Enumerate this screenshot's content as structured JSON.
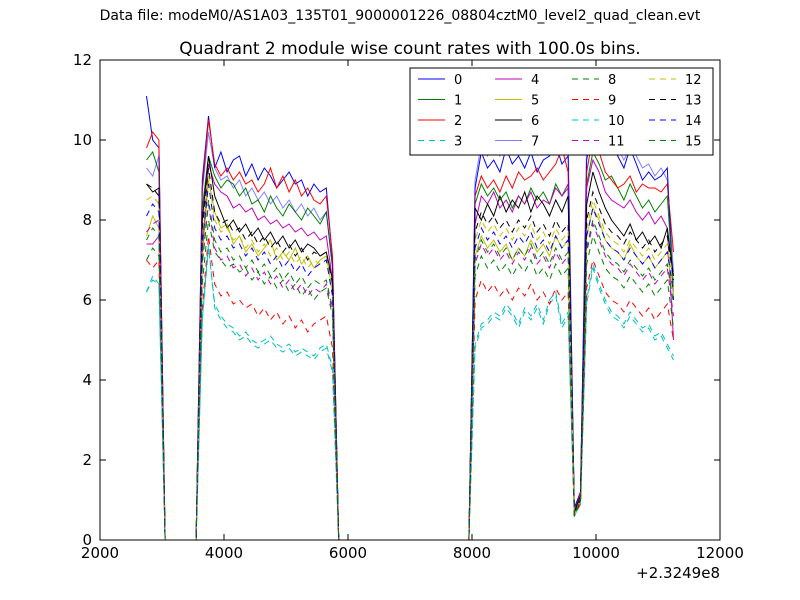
{
  "figure": {
    "suptitle": "Data file: modeM0/AS1A03_135T01_9000001226_08804cztM0_level2_quad_clean.evt"
  },
  "chart_data": {
    "type": "line",
    "title": "Quadrant 2 module wise count rates with 100.0s bins.",
    "xlabel": "",
    "ylabel": "",
    "x_offset_label": "+2.3249e8",
    "xlim": [
      2000,
      12000
    ],
    "ylim": [
      0,
      12
    ],
    "xticks": [
      2000,
      4000,
      6000,
      8000,
      10000,
      12000
    ],
    "yticks": [
      0,
      2,
      4,
      6,
      8,
      10,
      12
    ],
    "grid": false,
    "legend": {
      "placement": "top-right",
      "columns": 4
    },
    "x": [
      2750,
      2850,
      2950,
      3050,
      3550,
      3650,
      3750,
      3850,
      3950,
      4050,
      4150,
      4250,
      4350,
      4450,
      4550,
      4650,
      4750,
      4850,
      4950,
      5050,
      5150,
      5250,
      5350,
      5450,
      5550,
      5650,
      5750,
      5850,
      7950,
      8050,
      8150,
      8250,
      8350,
      8450,
      8550,
      8650,
      8750,
      8850,
      8950,
      9050,
      9150,
      9250,
      9350,
      9450,
      9550,
      9650,
      9750,
      9850,
      9950,
      10050,
      10150,
      10250,
      10350,
      10450,
      10550,
      10650,
      10750,
      10850,
      10950,
      11050,
      11150,
      11250
    ],
    "series": [
      {
        "name": "0",
        "color": "#0000ff",
        "dash": false,
        "values": [
          11.1,
          10.0,
          9.8,
          0,
          0,
          9.0,
          10.6,
          9.3,
          9.7,
          9.2,
          9.5,
          9.6,
          9.1,
          9.4,
          9.0,
          9.3,
          9.1,
          8.8,
          9.0,
          9.2,
          8.9,
          9.0,
          8.6,
          8.9,
          8.7,
          8.8,
          7.0,
          0,
          0,
          8.8,
          9.7,
          9.3,
          9.5,
          9.2,
          9.8,
          9.4,
          9.6,
          9.3,
          9.7,
          9.2,
          9.5,
          9.6,
          9.9,
          9.4,
          9.6,
          0.8,
          1.2,
          9.5,
          10.5,
          10.3,
          9.8,
          10.0,
          9.6,
          9.3,
          9.8,
          9.4,
          9.0,
          9.2,
          9.0,
          9.1,
          9.3,
          6.0
        ]
      },
      {
        "name": "1",
        "color": "#008000",
        "dash": false,
        "values": [
          9.5,
          9.7,
          9.2,
          0,
          0,
          8.3,
          9.6,
          9.1,
          8.8,
          9.0,
          8.9,
          8.6,
          8.8,
          8.4,
          8.5,
          8.2,
          8.6,
          8.3,
          8.1,
          8.4,
          8.2,
          8.0,
          8.3,
          8.1,
          7.9,
          8.2,
          6.8,
          0,
          0,
          8.4,
          8.9,
          8.6,
          8.8,
          8.5,
          8.7,
          8.3,
          8.6,
          8.4,
          8.8,
          8.5,
          8.7,
          8.4,
          8.9,
          8.6,
          8.8,
          0.7,
          1.1,
          8.9,
          9.7,
          9.4,
          9.0,
          9.1,
          8.8,
          8.5,
          8.9,
          8.6,
          8.3,
          8.5,
          8.2,
          8.4,
          8.6,
          6.3
        ]
      },
      {
        "name": "2",
        "color": "#ff0000",
        "dash": false,
        "values": [
          9.8,
          10.2,
          10.0,
          0,
          0,
          8.8,
          10.5,
          9.4,
          9.1,
          9.3,
          9.0,
          9.2,
          8.9,
          9.0,
          8.7,
          8.9,
          9.3,
          8.8,
          9.1,
          8.7,
          9.0,
          8.6,
          8.8,
          8.5,
          8.4,
          8.6,
          7.1,
          0,
          0,
          8.6,
          9.1,
          8.8,
          9.0,
          8.7,
          9.1,
          8.8,
          9.2,
          9.0,
          9.1,
          9.3,
          9.0,
          9.2,
          9.4,
          9.8,
          9.2,
          0.7,
          1.2,
          9.2,
          10.1,
          9.7,
          9.2,
          9.0,
          8.8,
          8.9,
          9.1,
          8.7,
          8.9,
          8.8,
          8.8,
          8.7,
          8.9,
          7.2
        ]
      },
      {
        "name": "3",
        "color": "#00bfbf",
        "dash": true,
        "values": [
          6.2,
          6.6,
          6.4,
          0,
          0,
          5.5,
          7.4,
          5.8,
          5.5,
          5.3,
          5.2,
          5.0,
          5.1,
          4.9,
          4.8,
          4.9,
          5.0,
          4.8,
          4.7,
          4.8,
          4.6,
          4.7,
          4.6,
          4.5,
          4.7,
          4.8,
          4.2,
          0,
          0,
          4.8,
          5.3,
          5.4,
          5.6,
          5.5,
          5.8,
          5.6,
          5.3,
          5.7,
          5.5,
          5.8,
          5.4,
          5.9,
          6.1,
          5.3,
          5.6,
          0.6,
          0.9,
          5.9,
          6.8,
          6.3,
          5.9,
          5.6,
          5.5,
          5.3,
          5.6,
          5.4,
          5.2,
          5.3,
          5.0,
          5.1,
          4.8,
          4.5
        ]
      },
      {
        "name": "4",
        "color": "#bf00bf",
        "dash": false,
        "values": [
          7.4,
          7.4,
          7.6,
          0,
          0,
          7.2,
          9.4,
          8.9,
          8.7,
          8.6,
          8.3,
          8.4,
          8.2,
          8.3,
          8.0,
          8.1,
          7.9,
          8.0,
          7.8,
          7.9,
          7.7,
          7.8,
          7.6,
          7.7,
          7.5,
          7.6,
          6.5,
          0,
          0,
          7.9,
          8.6,
          8.4,
          8.7,
          8.3,
          8.5,
          8.2,
          8.6,
          8.4,
          8.7,
          8.3,
          8.5,
          8.4,
          8.8,
          8.6,
          8.9,
          0.7,
          1.1,
          8.8,
          9.5,
          9.2,
          8.7,
          8.5,
          8.4,
          8.3,
          8.5,
          8.2,
          8.0,
          8.2,
          7.9,
          8.1,
          7.8,
          5.0
        ]
      },
      {
        "name": "5",
        "color": "#bfbf00",
        "dash": false,
        "values": [
          7.6,
          8.1,
          7.8,
          0,
          0,
          7.0,
          9.0,
          8.2,
          7.8,
          7.9,
          7.4,
          7.6,
          7.2,
          7.4,
          7.1,
          7.3,
          7.5,
          7.0,
          7.2,
          7.0,
          7.3,
          6.9,
          7.1,
          6.8,
          7.0,
          7.1,
          6.2,
          0,
          0,
          7.1,
          7.6,
          7.3,
          7.5,
          7.2,
          7.4,
          7.0,
          7.3,
          7.1,
          7.5,
          7.2,
          7.4,
          7.1,
          7.6,
          7.3,
          7.5,
          0.6,
          1.0,
          7.6,
          8.3,
          8.0,
          7.5,
          7.3,
          7.2,
          7.0,
          7.4,
          7.1,
          6.9,
          7.1,
          6.8,
          7.0,
          7.2,
          6.1
        ]
      },
      {
        "name": "6",
        "color": "#000000",
        "dash": false,
        "values": [
          8.9,
          8.7,
          8.8,
          0,
          0,
          8.0,
          9.6,
          8.6,
          8.2,
          7.8,
          8.0,
          7.7,
          7.9,
          7.6,
          7.8,
          7.5,
          7.7,
          7.4,
          7.6,
          7.3,
          7.5,
          7.2,
          7.4,
          7.3,
          7.1,
          7.2,
          6.5,
          0,
          0,
          8.3,
          8.0,
          8.4,
          8.1,
          8.6,
          8.2,
          8.5,
          8.3,
          8.7,
          8.2,
          8.6,
          8.4,
          8.1,
          8.5,
          8.2,
          8.6,
          0.7,
          1.1,
          8.4,
          9.2,
          8.7,
          8.3,
          8.0,
          7.8,
          7.6,
          7.9,
          7.5,
          7.7,
          7.4,
          7.6,
          7.3,
          7.8,
          6.6
        ]
      },
      {
        "name": "7",
        "color": "#0000ff",
        "dash": false,
        "alpha": 0.5,
        "values": [
          9.3,
          9.1,
          9.6,
          0,
          0,
          8.7,
          10.2,
          9.3,
          9.0,
          9.1,
          8.8,
          9.0,
          8.6,
          8.8,
          8.5,
          8.7,
          8.4,
          8.6,
          8.3,
          8.5,
          8.2,
          8.4,
          8.1,
          8.3,
          8.0,
          8.2,
          6.9,
          0,
          0,
          9.0,
          9.9,
          9.6,
          9.9,
          9.6,
          10.0,
          9.7,
          10.1,
          9.8,
          10.2,
          9.9,
          10.3,
          10.0,
          10.2,
          9.9,
          10.1,
          0.8,
          1.2,
          10.1,
          11.1,
          10.6,
          10.2,
          10.0,
          9.8,
          9.5,
          9.8,
          9.6,
          9.3,
          9.4,
          9.1,
          9.3,
          9.0,
          6.7
        ]
      },
      {
        "name": "8",
        "color": "#008000",
        "dash": true,
        "values": [
          7.0,
          7.3,
          7.1,
          0,
          0,
          6.4,
          8.0,
          7.2,
          7.0,
          6.8,
          6.9,
          6.7,
          6.8,
          6.5,
          6.7,
          6.4,
          6.6,
          6.3,
          6.5,
          6.2,
          6.4,
          6.1,
          6.3,
          6.0,
          6.2,
          6.3,
          5.6,
          0,
          0,
          6.6,
          7.1,
          6.8,
          7.0,
          6.7,
          6.9,
          6.6,
          6.9,
          6.7,
          7.0,
          6.6,
          6.8,
          6.5,
          6.9,
          6.6,
          6.8,
          0.6,
          1.0,
          6.9,
          7.6,
          7.2,
          6.8,
          6.6,
          6.5,
          6.3,
          6.6,
          6.4,
          6.2,
          6.4,
          6.1,
          6.3,
          6.5,
          5.3
        ]
      },
      {
        "name": "9",
        "color": "#ff0000",
        "dash": true,
        "values": [
          7.0,
          6.8,
          7.0,
          0,
          0,
          5.8,
          7.6,
          6.4,
          6.1,
          6.2,
          5.9,
          6.0,
          5.8,
          5.9,
          5.6,
          5.8,
          5.5,
          5.7,
          5.4,
          5.6,
          5.3,
          5.5,
          5.2,
          5.4,
          5.5,
          5.6,
          4.8,
          0,
          0,
          6.0,
          6.5,
          6.2,
          6.4,
          6.1,
          6.3,
          6.0,
          6.3,
          6.1,
          6.4,
          6.0,
          6.2,
          5.9,
          6.3,
          6.0,
          6.2,
          0.6,
          0.9,
          6.3,
          7.0,
          6.6,
          6.2,
          6.0,
          5.9,
          5.7,
          6.0,
          5.8,
          5.6,
          5.8,
          5.5,
          5.7,
          5.9,
          5.0
        ]
      },
      {
        "name": "10",
        "color": "#00bfbf",
        "dash": true,
        "values": [
          6.2,
          6.5,
          6.4,
          0,
          0,
          5.5,
          7.3,
          5.9,
          5.6,
          5.4,
          5.3,
          5.1,
          5.2,
          5.0,
          4.9,
          5.0,
          5.1,
          4.9,
          4.8,
          4.9,
          4.7,
          4.8,
          4.7,
          4.6,
          4.8,
          4.9,
          4.3,
          0,
          0,
          4.9,
          5.4,
          5.5,
          5.7,
          5.6,
          5.9,
          5.7,
          5.4,
          5.8,
          5.6,
          5.9,
          5.5,
          6.0,
          6.2,
          5.4,
          5.7,
          0.6,
          0.9,
          6.0,
          6.9,
          6.4,
          6.0,
          5.7,
          5.6,
          5.4,
          5.7,
          5.5,
          5.3,
          5.4,
          5.1,
          5.2,
          4.9,
          4.6
        ]
      },
      {
        "name": "11",
        "color": "#bf00bf",
        "dash": true,
        "values": [
          7.7,
          7.9,
          8.0,
          0,
          0,
          6.9,
          8.4,
          7.3,
          7.0,
          7.1,
          6.8,
          6.9,
          6.6,
          6.8,
          6.5,
          6.7,
          6.4,
          6.6,
          6.3,
          6.5,
          6.2,
          6.4,
          6.1,
          6.3,
          6.2,
          6.4,
          5.7,
          0,
          0,
          6.9,
          7.4,
          7.1,
          7.3,
          7.0,
          7.2,
          6.9,
          7.2,
          7.0,
          7.3,
          6.9,
          7.1,
          6.8,
          7.2,
          6.9,
          7.1,
          0.6,
          1.0,
          7.2,
          7.9,
          7.5,
          7.1,
          6.9,
          6.8,
          6.6,
          6.9,
          6.7,
          6.5,
          6.7,
          6.4,
          6.6,
          6.8,
          5.6
        ]
      },
      {
        "name": "12",
        "color": "#bfbf00",
        "dash": true,
        "values": [
          8.5,
          8.6,
          8.4,
          0,
          0,
          7.6,
          9.1,
          8.0,
          7.7,
          7.8,
          7.5,
          7.6,
          7.3,
          7.5,
          7.2,
          7.4,
          7.1,
          7.3,
          7.0,
          7.2,
          6.9,
          7.1,
          6.8,
          7.0,
          6.9,
          7.0,
          6.2,
          0,
          0,
          7.5,
          8.0,
          7.7,
          7.9,
          7.6,
          7.8,
          7.5,
          7.8,
          7.6,
          7.9,
          7.5,
          7.7,
          7.4,
          7.8,
          7.5,
          7.7,
          0.6,
          1.0,
          7.8,
          8.5,
          8.1,
          7.7,
          7.5,
          7.4,
          7.2,
          7.5,
          7.3,
          7.1,
          7.3,
          7.0,
          7.2,
          7.4,
          6.3
        ]
      },
      {
        "name": "13",
        "color": "#000000",
        "dash": true,
        "values": [
          8.9,
          8.8,
          8.6,
          0,
          0,
          7.8,
          9.3,
          8.2,
          7.9,
          8.0,
          7.7,
          7.8,
          7.5,
          7.7,
          7.4,
          7.6,
          7.3,
          7.5,
          7.2,
          7.4,
          7.1,
          7.3,
          7.0,
          7.2,
          7.1,
          7.2,
          6.4,
          0,
          0,
          7.7,
          8.2,
          7.9,
          8.1,
          7.8,
          8.0,
          7.7,
          8.0,
          7.8,
          8.1,
          7.7,
          7.9,
          7.6,
          8.0,
          7.7,
          7.9,
          0.7,
          1.0,
          8.0,
          8.7,
          8.3,
          7.9,
          7.7,
          7.6,
          7.4,
          7.7,
          7.5,
          7.3,
          7.5,
          7.2,
          7.4,
          7.6,
          6.5
        ]
      },
      {
        "name": "14",
        "color": "#0000ff",
        "dash": true,
        "values": [
          8.1,
          8.4,
          8.2,
          0,
          0,
          7.4,
          8.9,
          7.8,
          7.5,
          7.6,
          7.3,
          7.4,
          7.1,
          7.3,
          7.0,
          7.2,
          6.9,
          7.1,
          6.8,
          7.0,
          6.7,
          6.9,
          6.6,
          6.8,
          6.9,
          7.0,
          6.1,
          0,
          0,
          7.3,
          7.8,
          7.5,
          7.7,
          7.4,
          7.6,
          7.3,
          7.6,
          7.4,
          7.7,
          7.3,
          7.5,
          7.2,
          7.6,
          7.3,
          7.5,
          0.6,
          1.0,
          7.6,
          8.3,
          7.9,
          7.5,
          7.3,
          7.2,
          7.0,
          7.3,
          7.1,
          6.9,
          7.1,
          6.8,
          7.0,
          7.2,
          6.2
        ]
      },
      {
        "name": "15",
        "color": "#008000",
        "dash": true,
        "values": [
          7.5,
          7.8,
          7.6,
          0,
          0,
          6.9,
          8.5,
          7.5,
          7.2,
          7.3,
          7.0,
          7.1,
          6.8,
          7.0,
          6.7,
          6.9,
          6.6,
          6.8,
          6.5,
          6.7,
          6.4,
          6.6,
          6.3,
          6.5,
          6.4,
          6.5,
          5.8,
          0,
          0,
          7.0,
          7.5,
          7.2,
          7.4,
          7.1,
          7.3,
          7.0,
          7.3,
          7.1,
          7.4,
          7.0,
          7.2,
          6.9,
          7.3,
          7.0,
          7.2,
          0.6,
          1.0,
          7.3,
          8.0,
          7.6,
          7.2,
          7.0,
          6.9,
          6.7,
          7.0,
          6.8,
          6.6,
          6.8,
          6.5,
          6.7,
          6.9,
          5.9
        ]
      }
    ]
  }
}
